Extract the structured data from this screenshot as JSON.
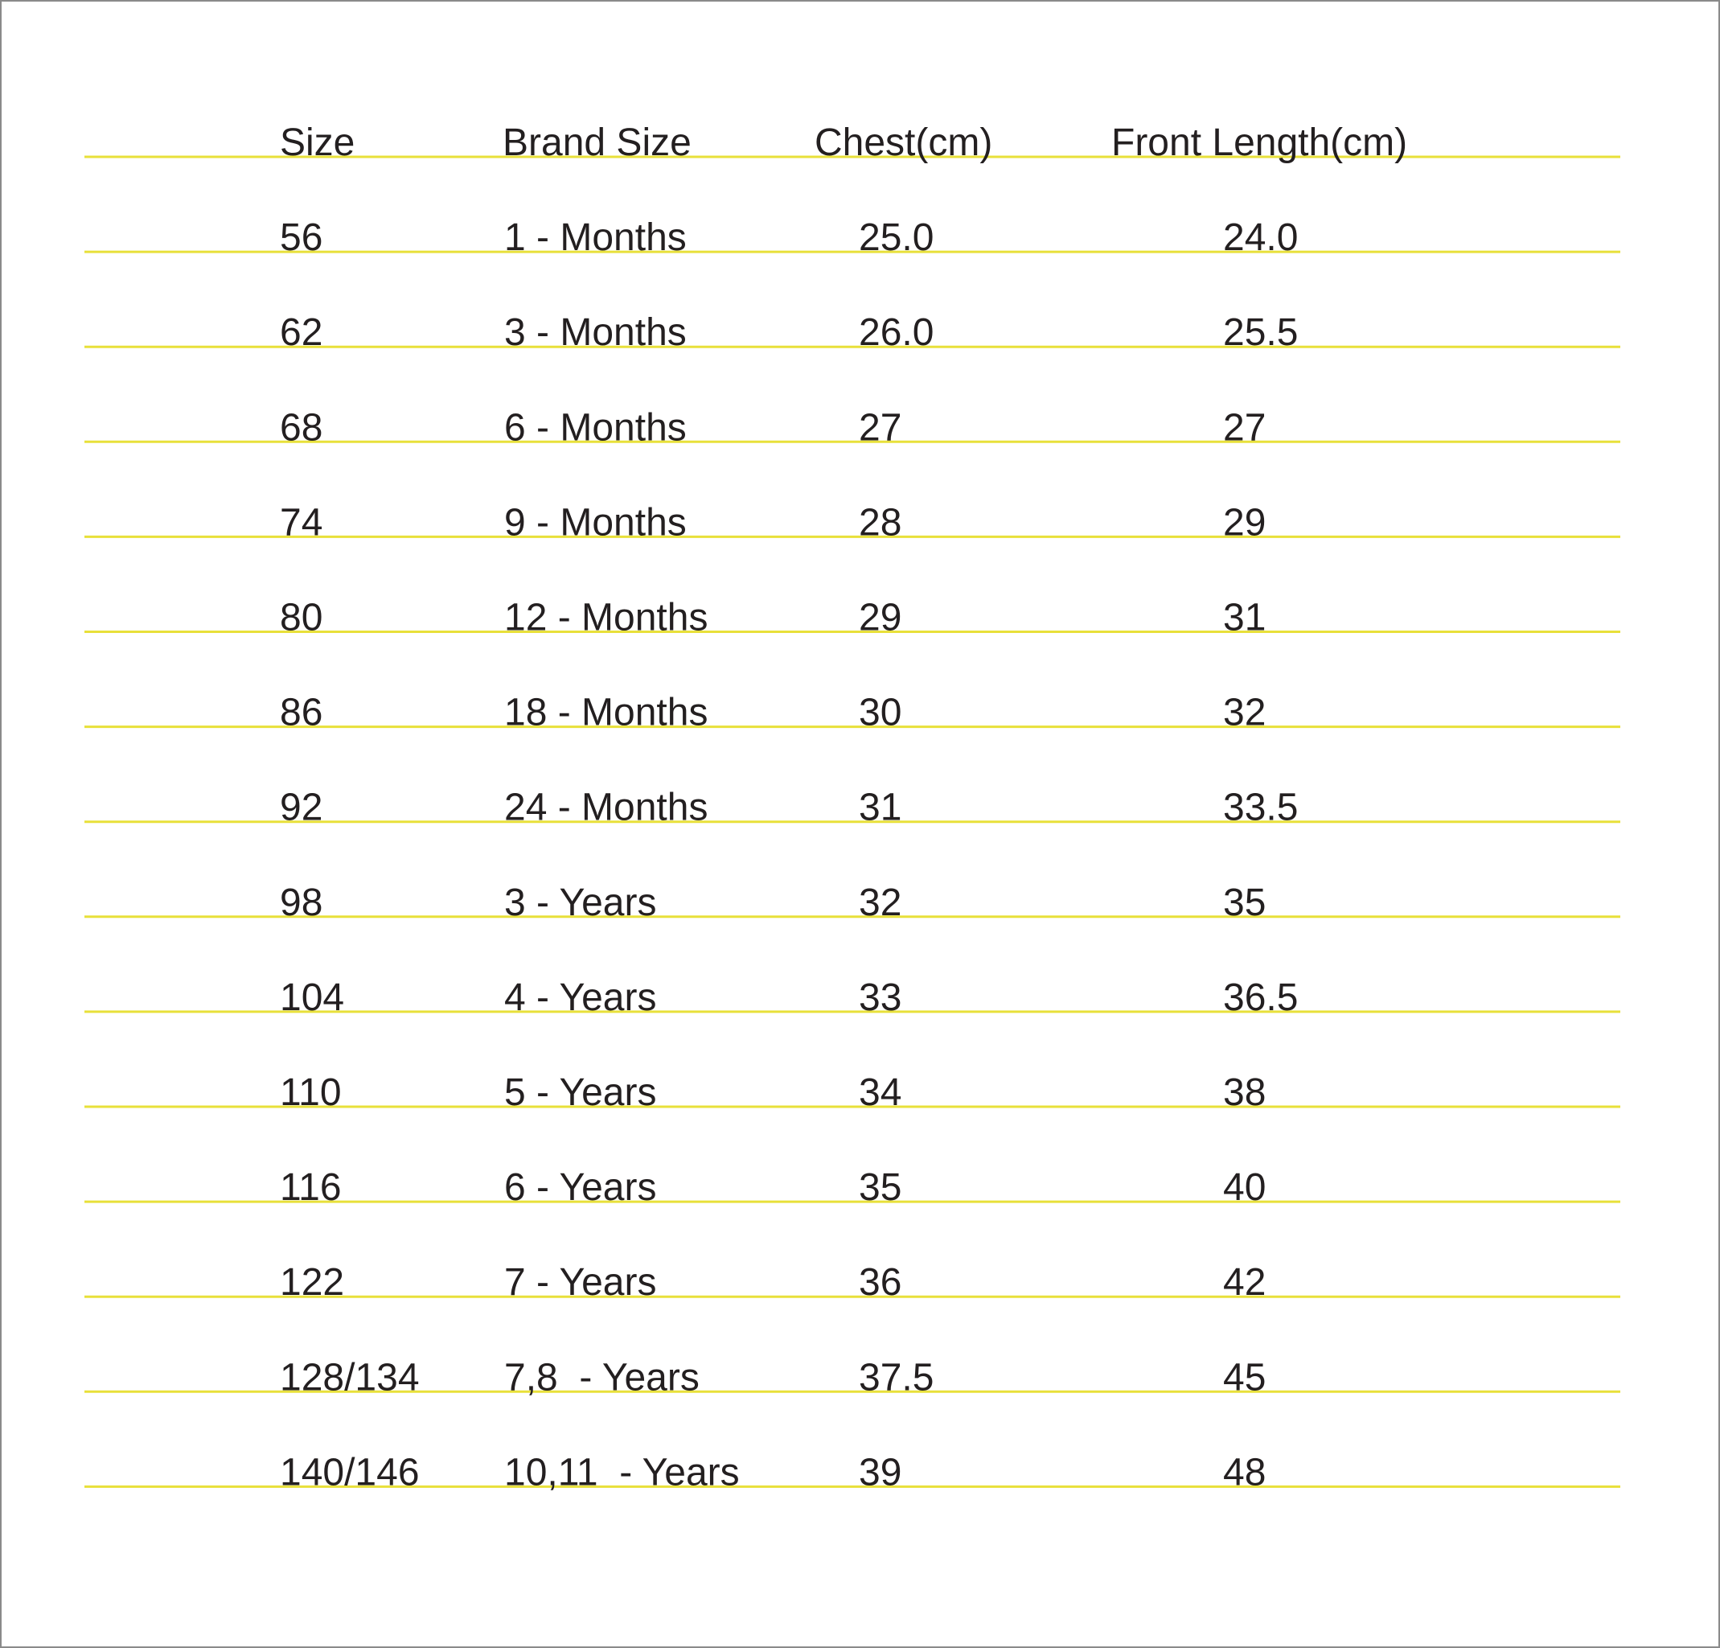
{
  "table": {
    "header": [
      "Size",
      "Brand Size",
      "Chest(cm)",
      "Front Length(cm)"
    ],
    "rows": [
      [
        "56",
        "1 - Months",
        "25.0",
        "24.0"
      ],
      [
        "62",
        "3 - Months",
        "26.0",
        "25.5"
      ],
      [
        "68",
        "6 - Months",
        "27",
        "27"
      ],
      [
        "74",
        "9 - Months",
        "28",
        "29"
      ],
      [
        "80",
        "12 - Months",
        "29",
        "31"
      ],
      [
        "86",
        "18 - Months",
        "30",
        "32"
      ],
      [
        "92",
        "24 - Months",
        "31",
        "33.5"
      ],
      [
        "98",
        "3 - Years",
        "32",
        "35"
      ],
      [
        "104",
        "4 - Years",
        "33",
        "36.5"
      ],
      [
        "110",
        "5 - Years",
        "34",
        "38"
      ],
      [
        "116",
        "6 - Years",
        "35",
        "40"
      ],
      [
        "122",
        "7 - Years",
        "36",
        "42"
      ],
      [
        "128/134",
        "7,8  - Years",
        "37.5",
        "45"
      ],
      [
        "140/146",
        "10,11  - Years",
        "39",
        "48"
      ]
    ]
  }
}
